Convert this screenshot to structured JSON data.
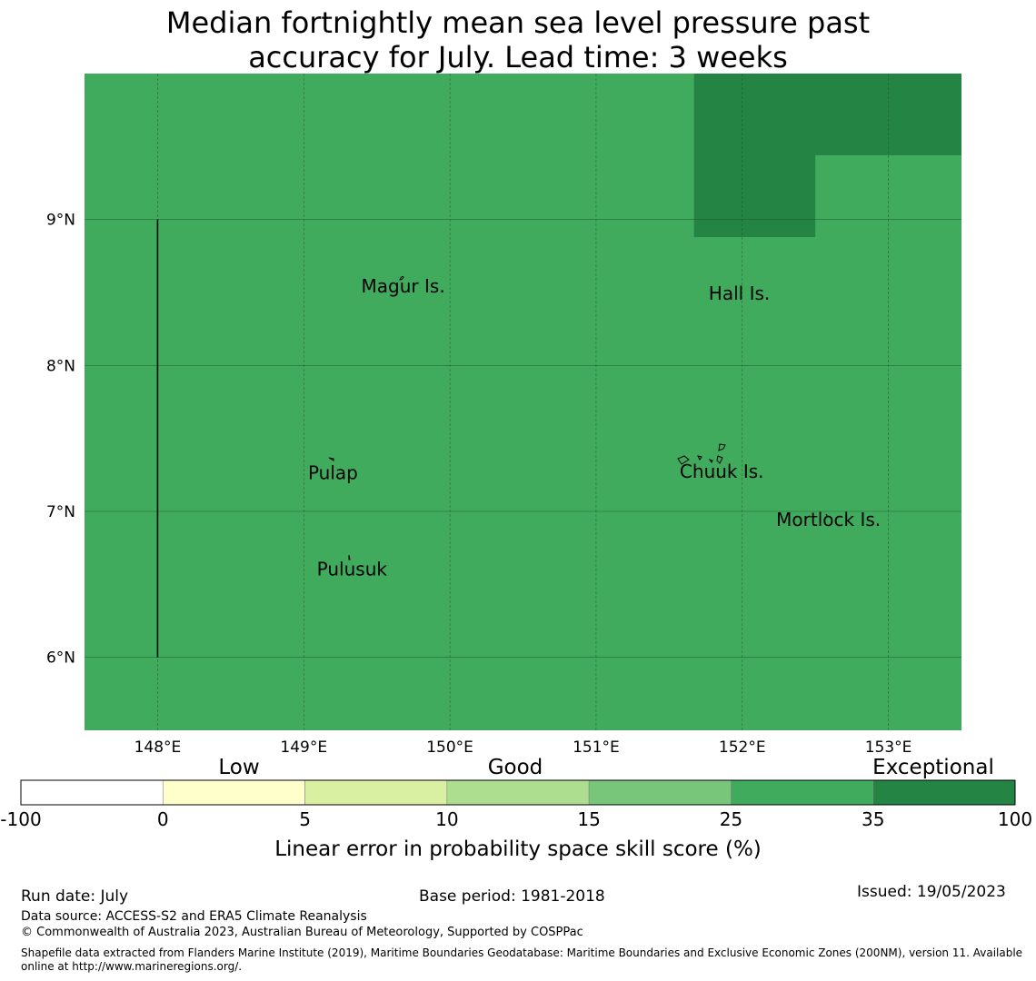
{
  "title": {
    "line1": "Median fortnightly mean sea level pressure past",
    "line2": "accuracy for July. Lead time: 3 weeks"
  },
  "map": {
    "lon_range": [
      147.5,
      153.5
    ],
    "lat_range": [
      5.5,
      10.0
    ],
    "lon_ticks": [
      {
        "value": 148,
        "label": "148°E"
      },
      {
        "value": 149,
        "label": "149°E"
      },
      {
        "value": 150,
        "label": "150°E"
      },
      {
        "value": 151,
        "label": "151°E"
      },
      {
        "value": 152,
        "label": "152°E"
      },
      {
        "value": 153,
        "label": "153°E"
      }
    ],
    "lat_ticks": [
      {
        "value": 9,
        "label": "9°N"
      },
      {
        "value": 8,
        "label": "8°N"
      },
      {
        "value": 7,
        "label": "7°N"
      },
      {
        "value": 6,
        "label": "6°N"
      }
    ],
    "background_color": "#41ab5d",
    "exceptional_color": "#238443",
    "exceptional_region": [
      {
        "lon": [
          151.67,
          153.5
        ],
        "lat": [
          9.44,
          10.0
        ]
      },
      {
        "lon": [
          151.67,
          152.5
        ],
        "lat": [
          8.88,
          9.44
        ]
      }
    ],
    "boundary_line": {
      "lon": 148.0,
      "lat": [
        6.0,
        9.0
      ]
    },
    "places": [
      {
        "name": "Magur Is.",
        "lon": 149.68,
        "lat": 8.5
      },
      {
        "name": "Hall Is.",
        "lon": 151.98,
        "lat": 8.45
      },
      {
        "name": "Pulap",
        "lon": 149.2,
        "lat": 7.22
      },
      {
        "name": "Chuuk Is.",
        "lon": 151.86,
        "lat": 7.23
      },
      {
        "name": "Mortlock Is.",
        "lon": 152.59,
        "lat": 6.9
      },
      {
        "name": "Pulusuk",
        "lon": 149.33,
        "lat": 6.56
      }
    ]
  },
  "colorbar": {
    "category_labels": [
      "Low",
      "Good",
      "Exceptional"
    ],
    "boundaries": [
      "-100",
      "0",
      "5",
      "10",
      "15",
      "25",
      "35",
      "100"
    ],
    "colors": [
      "#ffffff",
      "#ffffcc",
      "#d9f0a3",
      "#addd8e",
      "#78c679",
      "#41ab5d",
      "#238443"
    ],
    "label": "Linear error in probability space skill score (%)"
  },
  "footer": {
    "run_date": "Run date: July",
    "base_period": "Base period: 1981-2018",
    "issued": "Issued: 19/05/2023",
    "data_source": "Data source: ACCESS-S2 and ERA5 Climate Reanalysis",
    "copyright": "© Commonwealth of Australia 2023, Australian Bureau of Meteorology, Supported by COSPPac",
    "shapefile_line1": "Shapefile data extracted from Flanders Marine Institute (2019), Maritime Boundaries Geodatabase: Maritime Boundaries and Exclusive Economic Zones (200NM), version 11. Available",
    "shapefile_line2": "online at http://www.marineregions.org/."
  }
}
